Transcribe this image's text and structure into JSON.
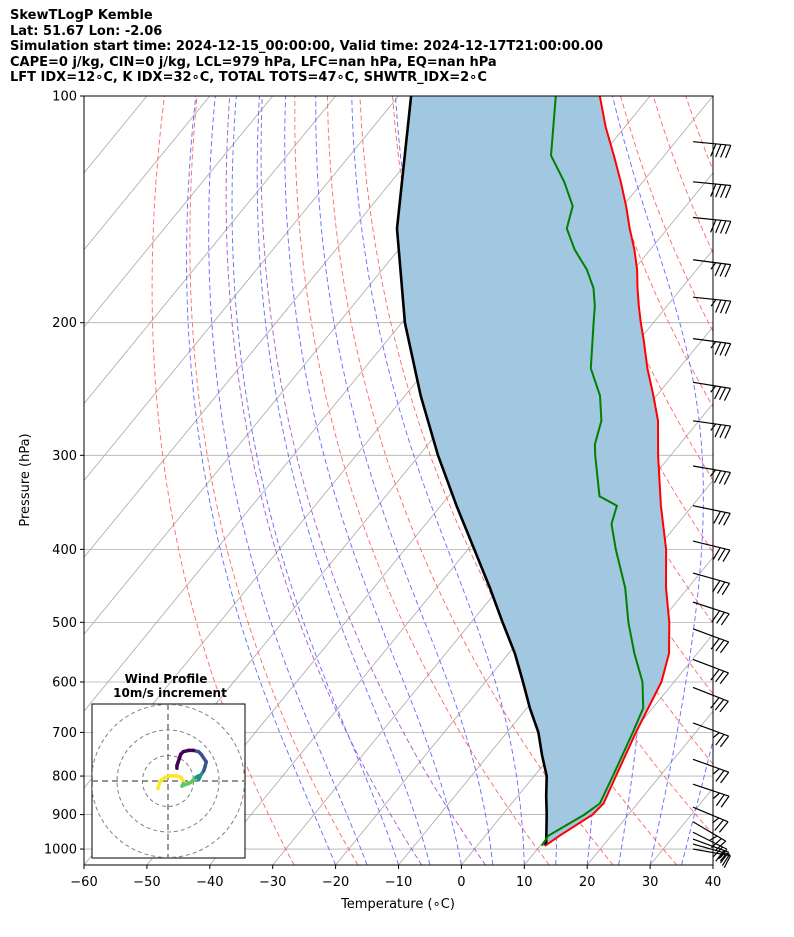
{
  "header": {
    "line1": "SkewTLogP Kemble",
    "line2": "Lat: 51.67   Lon: -2.06",
    "line3": "Simulation start time: 2024-12-15_00:00:00, Valid time: 2024-12-17T21:00:00.00",
    "line4": "CAPE=0 j/kg, CIN=0 j/kg, LCL=979 hPa, LFC=nan hPa, EQ=nan hPa",
    "line5": "LFT IDX=12∘C, K IDX=32∘C, TOTAL TOTS=47∘C, SHWTR_IDX=2∘C"
  },
  "colors": {
    "temperature": "#ff0000",
    "dewpoint": "#008000",
    "parcel": "#000000",
    "cape_fill": "#a2c7e0",
    "dry_adiabat": "#ff6666",
    "moist_adiabat": "#6666ff",
    "isotherm": "#a8a8a8",
    "dry_adiabat_purple": "#aa55cc"
  },
  "chart_data": {
    "type": "skewt",
    "xlabel": "Temperature (∘C)",
    "ylabel": "Pressure (hPa)",
    "xlim": [
      -60,
      40
    ],
    "ylim": [
      1050,
      100
    ],
    "x_ticks": [
      "−60",
      "−50",
      "−40",
      "−30",
      "−20",
      "−10",
      "0",
      "10",
      "20",
      "30",
      "40"
    ],
    "y_ticks": [
      "1000",
      "900",
      "800",
      "700",
      "600",
      "500",
      "400",
      "300",
      "200",
      "100"
    ],
    "y_tick_values": [
      1000,
      900,
      800,
      700,
      600,
      500,
      400,
      300,
      200,
      100
    ],
    "grid": true,
    "temperature_profile": [
      [
        990,
        10.8
      ],
      [
        960,
        11.8
      ],
      [
        900,
        14.3
      ],
      [
        870,
        14.6
      ],
      [
        800,
        13.0
      ],
      [
        700,
        10.5
      ],
      [
        600,
        8.0
      ],
      [
        550,
        5.5
      ],
      [
        500,
        1.5
      ],
      [
        450,
        -3.5
      ],
      [
        400,
        -8.5
      ],
      [
        350,
        -15.0
      ],
      [
        300,
        -22.0
      ],
      [
        270,
        -26.5
      ],
      [
        250,
        -30.5
      ],
      [
        230,
        -35.0
      ],
      [
        210,
        -39.5
      ],
      [
        200,
        -42.0
      ],
      [
        190,
        -44.5
      ],
      [
        180,
        -47.0
      ],
      [
        170,
        -49.5
      ],
      [
        160,
        -52.5
      ],
      [
        150,
        -56.0
      ],
      [
        140,
        -59.5
      ],
      [
        130,
        -63.5
      ],
      [
        120,
        -68.0
      ],
      [
        110,
        -73.0
      ],
      [
        100,
        -78.0
      ]
    ],
    "dewpoint_profile": [
      [
        990,
        10.3
      ],
      [
        960,
        10.0
      ],
      [
        900,
        13.0
      ],
      [
        870,
        14.0
      ],
      [
        800,
        12.5
      ],
      [
        700,
        10.0
      ],
      [
        650,
        8.5
      ],
      [
        600,
        5.0
      ],
      [
        550,
        0.0
      ],
      [
        500,
        -5.0
      ],
      [
        450,
        -10.0
      ],
      [
        400,
        -16.5
      ],
      [
        370,
        -20.5
      ],
      [
        350,
        -22.0
      ],
      [
        340,
        -26.0
      ],
      [
        300,
        -32.0
      ],
      [
        290,
        -33.5
      ],
      [
        270,
        -35.5
      ],
      [
        250,
        -39.0
      ],
      [
        230,
        -44.0
      ],
      [
        200,
        -49.5
      ],
      [
        190,
        -51.5
      ],
      [
        180,
        -54.0
      ],
      [
        170,
        -57.5
      ],
      [
        160,
        -62.0
      ],
      [
        150,
        -66.0
      ],
      [
        140,
        -68.0
      ],
      [
        130,
        -72.5
      ],
      [
        120,
        -78.0
      ],
      [
        100,
        -85.0
      ]
    ],
    "parcel_profile": [
      [
        990,
        10.8
      ],
      [
        979,
        10.5
      ],
      [
        900,
        7.0
      ],
      [
        850,
        4.5
      ],
      [
        800,
        2.0
      ],
      [
        750,
        -1.5
      ],
      [
        700,
        -5.0
      ],
      [
        650,
        -9.5
      ],
      [
        600,
        -14.0
      ],
      [
        550,
        -19.0
      ],
      [
        500,
        -25.0
      ],
      [
        450,
        -31.5
      ],
      [
        400,
        -39.0
      ],
      [
        350,
        -47.5
      ],
      [
        300,
        -57.0
      ],
      [
        250,
        -67.5
      ],
      [
        200,
        -79.5
      ],
      [
        150,
        -93.0
      ],
      [
        100,
        -108.0
      ]
    ],
    "wind_barbs": [
      {
        "p": 1000,
        "u": -17,
        "v": 3
      },
      {
        "p": 985,
        "u": -18,
        "v": 5
      },
      {
        "p": 970,
        "u": -19,
        "v": 7
      },
      {
        "p": 950,
        "u": -20,
        "v": 10
      },
      {
        "p": 920,
        "u": -22,
        "v": 13
      },
      {
        "p": 880,
        "u": -24,
        "v": 10
      },
      {
        "p": 820,
        "u": -24,
        "v": 8
      },
      {
        "p": 760,
        "u": -25,
        "v": 9
      },
      {
        "p": 680,
        "u": -27,
        "v": 10
      },
      {
        "p": 610,
        "u": -28,
        "v": 11
      },
      {
        "p": 560,
        "u": -29,
        "v": 11
      },
      {
        "p": 510,
        "u": -30,
        "v": 11
      },
      {
        "p": 470,
        "u": -31,
        "v": 10
      },
      {
        "p": 430,
        "u": -32,
        "v": 9
      },
      {
        "p": 390,
        "u": -33,
        "v": 8
      },
      {
        "p": 350,
        "u": -34,
        "v": 7
      },
      {
        "p": 310,
        "u": -35,
        "v": 6
      },
      {
        "p": 270,
        "u": -36,
        "v": 5
      },
      {
        "p": 240,
        "u": -37,
        "v": 6
      },
      {
        "p": 210,
        "u": -38,
        "v": 5
      },
      {
        "p": 185,
        "u": -39,
        "v": 4
      },
      {
        "p": 165,
        "u": -39,
        "v": 5
      },
      {
        "p": 145,
        "u": -40,
        "v": 4
      },
      {
        "p": 130,
        "u": -41,
        "v": 4
      },
      {
        "p": 115,
        "u": -42,
        "v": 4
      }
    ],
    "hodograph": {
      "title_line1": "Wind Profile",
      "title_line2": "10m/s increment",
      "ring_step": 10,
      "points": [
        [
          -4,
          -3
        ],
        [
          -3,
          0
        ],
        [
          -1,
          1.5
        ],
        [
          1,
          2
        ],
        [
          3,
          2
        ],
        [
          5,
          1.5
        ],
        [
          6,
          0
        ],
        [
          6,
          -1
        ],
        [
          5.5,
          -2
        ],
        [
          6.5,
          -1.5
        ],
        [
          8,
          -1
        ],
        [
          9,
          -0.5
        ],
        [
          10,
          0.5
        ],
        [
          11,
          1.5
        ],
        [
          12,
          2
        ],
        [
          12.5,
          1.5
        ],
        [
          12,
          0.5
        ],
        [
          12,
          1
        ],
        [
          13,
          2.5
        ],
        [
          14,
          4
        ],
        [
          14.5,
          5.5
        ],
        [
          15,
          7.5
        ],
        [
          14,
          9
        ],
        [
          13,
          10.5
        ],
        [
          12,
          11.5
        ],
        [
          10,
          12
        ],
        [
          8,
          12
        ],
        [
          6,
          11.5
        ],
        [
          5,
          10.5
        ],
        [
          4.5,
          9
        ],
        [
          4,
          7.5
        ],
        [
          3.5,
          6
        ],
        [
          3.5,
          5
        ]
      ]
    }
  }
}
